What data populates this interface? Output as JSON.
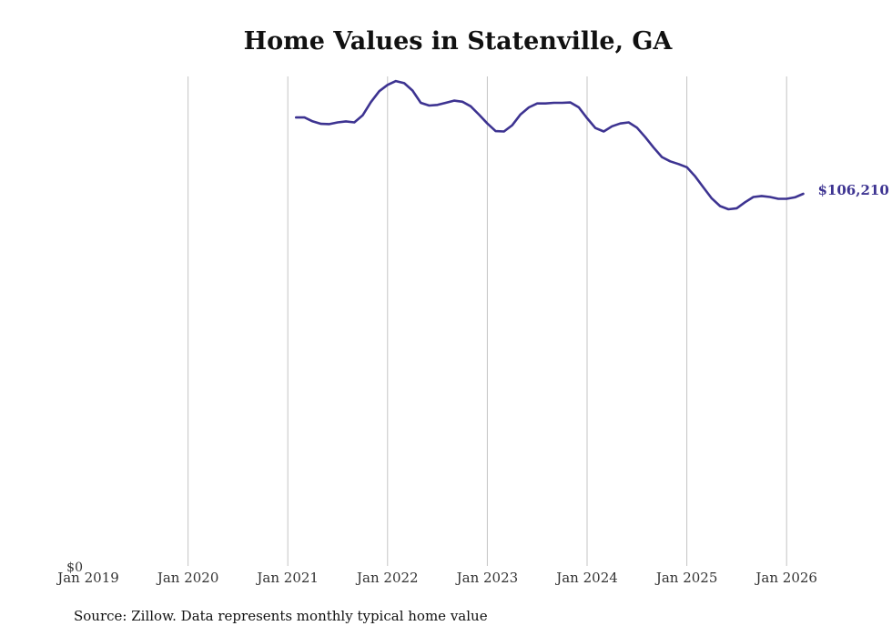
{
  "chart_data": {
    "type": "line",
    "title": "Home Values in Statenville, GA",
    "xlabel": "",
    "ylabel": "",
    "x_ticks": [
      "Jan 2019",
      "Jan 2020",
      "Jan 2021",
      "Jan 2022",
      "Jan 2023",
      "Jan 2024",
      "Jan 2025",
      "Jan 2026"
    ],
    "y_ticks": [
      "$0"
    ],
    "x_range": [
      2019.0,
      2026.25
    ],
    "ylim": [
      0,
      139200
    ],
    "grid": "vertical",
    "series": [
      {
        "name": "Typical home value",
        "color": "#3d3391",
        "x": [
          2021.083,
          2021.167,
          2021.25,
          2021.333,
          2021.417,
          2021.5,
          2021.583,
          2021.667,
          2021.75,
          2021.833,
          2021.917,
          2022.0,
          2022.083,
          2022.167,
          2022.25,
          2022.333,
          2022.417,
          2022.5,
          2022.583,
          2022.667,
          2022.75,
          2022.833,
          2022.917,
          2023.0,
          2023.083,
          2023.167,
          2023.25,
          2023.333,
          2023.417,
          2023.5,
          2023.583,
          2023.667,
          2023.75,
          2023.833,
          2023.917,
          2024.0,
          2024.083,
          2024.167,
          2024.25,
          2024.333,
          2024.417,
          2024.5,
          2024.583,
          2024.667,
          2024.75,
          2024.833,
          2024.917,
          2025.0,
          2025.083,
          2025.167,
          2025.25,
          2025.333,
          2025.417,
          2025.5,
          2025.583,
          2025.667,
          2025.75,
          2025.833,
          2025.917,
          2026.0,
          2026.083,
          2026.167
        ],
        "values": [
          128000,
          128000,
          126900,
          126200,
          126100,
          126600,
          126900,
          126600,
          128600,
          132400,
          135500,
          137300,
          138400,
          137800,
          135700,
          132200,
          131400,
          131600,
          132200,
          132800,
          132500,
          131200,
          128800,
          126300,
          124100,
          124000,
          125800,
          128900,
          130900,
          132000,
          132000,
          132200,
          132200,
          132300,
          130900,
          127800,
          125000,
          124000,
          125500,
          126300,
          126600,
          125100,
          122400,
          119400,
          116700,
          115500,
          114700,
          113800,
          111200,
          108000,
          104900,
          102700,
          101800,
          102100,
          103800,
          105300,
          105600,
          105300,
          104800,
          104800,
          105200,
          106210
        ]
      }
    ],
    "end_label": "$106,210"
  },
  "source_note": "Source: Zillow. Data represents monthly typical home value"
}
